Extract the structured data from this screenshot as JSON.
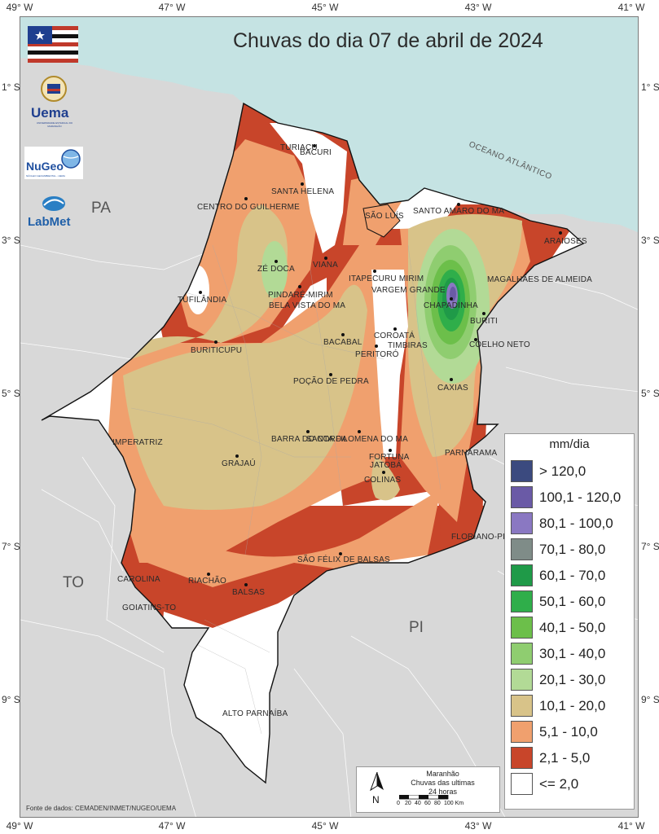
{
  "title": "Chuvas do dia 07 de abril de 2024",
  "coords": {
    "lon_top": [
      "49° W",
      "47° W",
      "45° W",
      "43° W",
      "41° W"
    ],
    "lon_bottom": [
      "49° W",
      "47° W",
      "45° W",
      "43° W",
      "41° W"
    ],
    "lat_left": [
      "1° S",
      "3° S",
      "5° S",
      "7° S",
      "9° S"
    ],
    "lat_right": [
      "1° S",
      "3° S",
      "5° S",
      "7° S",
      "9° S"
    ]
  },
  "regions": {
    "pa": "PA",
    "to": "TO",
    "pi": "PI"
  },
  "ocean": "OCEANO ATLÂNTICO",
  "cities": [
    "TURIAÇU",
    "BACURI",
    "SANTA HELENA",
    "CENTRO DO GUILHERME",
    "SÃO LUÍS",
    "SANTO AMARO DO MA",
    "ARAIOSES",
    "ZÉ DOCA",
    "VIANA",
    "ITAPECURU MIRIM",
    "VARGEM GRANDE",
    "PINDARÉ-MIRIM",
    "BELA VISTA DO MA",
    "MAGALHÃES DE ALMEIDA",
    "TUFILÂNDIA",
    "CHAPADINHA",
    "BURITI",
    "BACABAL",
    "COROATÁ",
    "TIMBIRAS",
    "COELHO NETO",
    "PERITORÓ",
    "BURITICUPU",
    "POÇÃO DE PEDRA",
    "CAXIAS",
    "IMPERATRIZ",
    "BARRA DO CORDA",
    "SANTA FILOMENA DO MA",
    "FORTUNA",
    "JATOBÁ",
    "PARNARAMA",
    "GRAJAÚ",
    "COLINAS",
    "FLORIANO-PI",
    "SÃO FÉLIX DE BALSAS",
    "CAROLINA",
    "RIACHÃO",
    "BALSAS",
    "GOIATINS-TO",
    "ALTO PARNAÍBA"
  ],
  "legend": {
    "title": "mm/dia",
    "items": [
      {
        "label": "> 120,0",
        "color": "#3b4a7f"
      },
      {
        "label": "100,1 - 120,0",
        "color": "#6a5aa6"
      },
      {
        "label": "80,1 - 100,0",
        "color": "#8a78c2"
      },
      {
        "label": "70,1 - 80,0",
        "color": "#7f8c88"
      },
      {
        "label": "60,1 - 70,0",
        "color": "#1f9a48"
      },
      {
        "label": "50,1 - 60,0",
        "color": "#2fae4a"
      },
      {
        "label": "40,1 - 50,0",
        "color": "#6cbf4a"
      },
      {
        "label": "30,1 - 40,0",
        "color": "#8fcd70"
      },
      {
        "label": "20,1 - 30,0",
        "color": "#b2da96"
      },
      {
        "label": "10,1 - 20,0",
        "color": "#d8c389"
      },
      {
        "label": "5,1 - 10,0",
        "color": "#f0a06e"
      },
      {
        "label": "2,1 - 5,0",
        "color": "#c8452a"
      },
      {
        "label": "<= 2,0",
        "color": "#ffffff"
      }
    ]
  },
  "scale_box": {
    "line1": "Maranhão",
    "line2": "Chuvas das ultimas",
    "line3": "24 horas",
    "north": "N",
    "ticks": [
      "0",
      "20",
      "40",
      "60",
      "80",
      "100 Km"
    ]
  },
  "logos": {
    "uema": "Uema",
    "uema_sub": "UNIVERSIDADE ESTADUAL DO MARANHÃO",
    "nugeo": "NuGeo",
    "nugeo_sub": "NÚCLEO GEOAMBIENTAL - UEMA",
    "labmet": "LabMet"
  },
  "source": "Fonte de dados: CEMADEN/INMET/NUGEO/UEMA"
}
